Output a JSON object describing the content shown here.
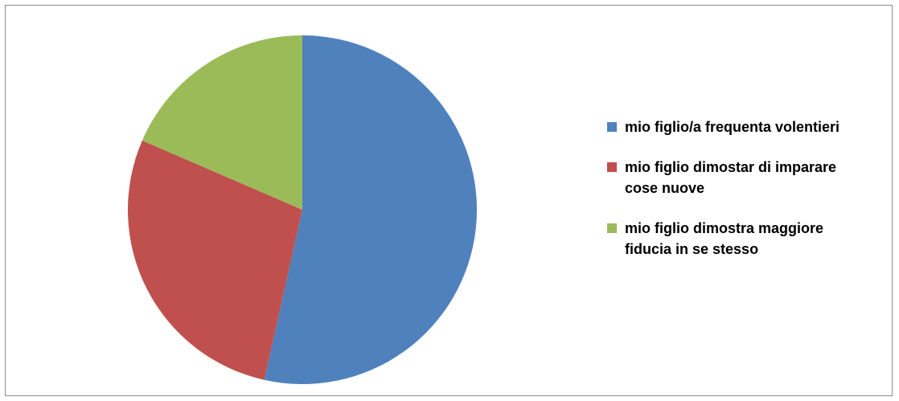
{
  "chart_data": {
    "type": "pie",
    "title": "",
    "categories": [
      "mio figlio/a frequenta volentieri",
      "mio figlio dimostar di imparare cose nuove",
      "mio figlio dimostra maggiore fiducia in se stesso"
    ],
    "values": [
      53.5,
      28,
      18.5
    ],
    "colors": [
      "#4f81bd",
      "#c0504d",
      "#9bbb59"
    ],
    "legend_position": "right",
    "legend_labels": [
      " mio figlio/a frequenta volentieri",
      "mio figlio dimostar di imparare cose nuove",
      " mio figlio dimostra maggiore fiducia in se stesso"
    ]
  }
}
